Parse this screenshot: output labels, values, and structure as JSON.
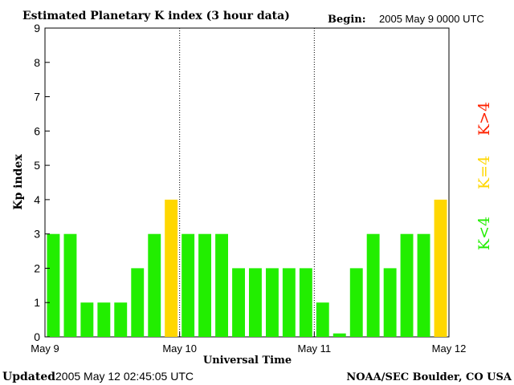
{
  "header": {
    "title": "Estimated Planetary K index (3 hour data)",
    "begin_label": "Begin:",
    "begin_value": "2005 May 9 0000 UTC"
  },
  "footer": {
    "updated_label": "Updated",
    "updated_value": "2005 May 12 02:45:05 UTC",
    "source": "NOAA/SEC Boulder, CO USA"
  },
  "legend": {
    "low": "K<4",
    "equal": "K=4",
    "high": "K>4",
    "colors": {
      "low": "#22ee00",
      "equal": "#ffd700",
      "high": "#ff2200"
    }
  },
  "chart_data": {
    "type": "bar",
    "title": "Estimated Planetary K index (3 hour data)",
    "xlabel": "Universal Time",
    "ylabel": "Kp index",
    "ylim": [
      0,
      9
    ],
    "yticks": [
      "0",
      "1",
      "2",
      "3",
      "4",
      "5",
      "6",
      "7",
      "8",
      "9"
    ],
    "xticks": [
      "May 9",
      "May 10",
      "May 11",
      "May 12"
    ],
    "values": [
      3,
      3,
      1,
      1,
      1,
      2,
      3,
      4,
      3,
      3,
      3,
      2,
      2,
      2,
      2,
      2,
      1,
      0.1,
      2,
      3,
      2,
      3,
      3,
      4
    ],
    "grid": "dotted vertical lines at day boundaries"
  }
}
